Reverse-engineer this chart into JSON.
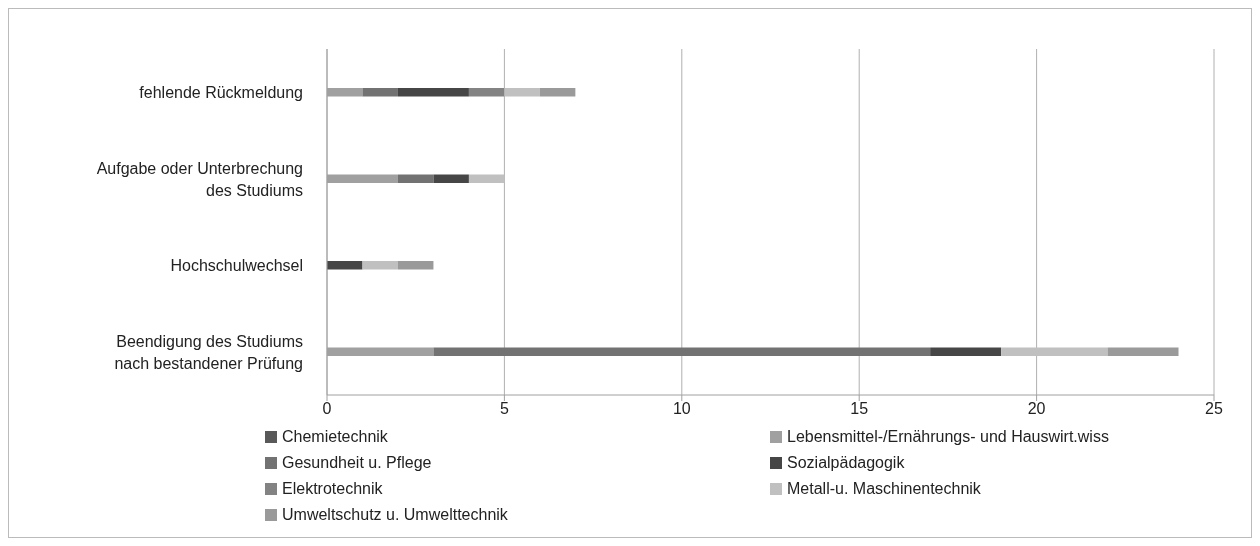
{
  "chart_data": {
    "type": "bar",
    "orientation": "horizontal",
    "stacked": true,
    "categories": [
      "fehlende Rückmeldung",
      "Aufgabe oder Unterbrechung des Studiums",
      "Hochschulwechsel",
      "Beendigung des Studiums nach bestandener Prüfung"
    ],
    "series": [
      {
        "name": "Chemietechnik",
        "color": "#595959",
        "values": [
          0,
          0,
          0,
          0
        ]
      },
      {
        "name": "Lebensmittel-/Ernährungs- und Hauswirt.wiss",
        "color": "#a0a0a0",
        "values": [
          1,
          2,
          0,
          3
        ]
      },
      {
        "name": "Gesundheit u. Pflege",
        "color": "#727272",
        "values": [
          1,
          1,
          0,
          14
        ]
      },
      {
        "name": "Sozialpädagogik",
        "color": "#464646",
        "values": [
          2,
          1,
          1,
          2
        ]
      },
      {
        "name": "Elektrotechnik",
        "color": "#838383",
        "values": [
          1,
          0,
          0,
          0
        ]
      },
      {
        "name": "Metall-u. Maschinentechnik",
        "color": "#c0c0c0",
        "values": [
          1,
          1,
          1,
          3
        ]
      },
      {
        "name": "Umweltschutz u. Umwelttechnik",
        "color": "#9a9a9a",
        "values": [
          1,
          0,
          1,
          2
        ]
      }
    ],
    "xlim": [
      0,
      25
    ],
    "xticks": [
      0,
      5,
      10,
      15,
      20,
      25
    ],
    "grid": "x",
    "legend": "bottom"
  }
}
